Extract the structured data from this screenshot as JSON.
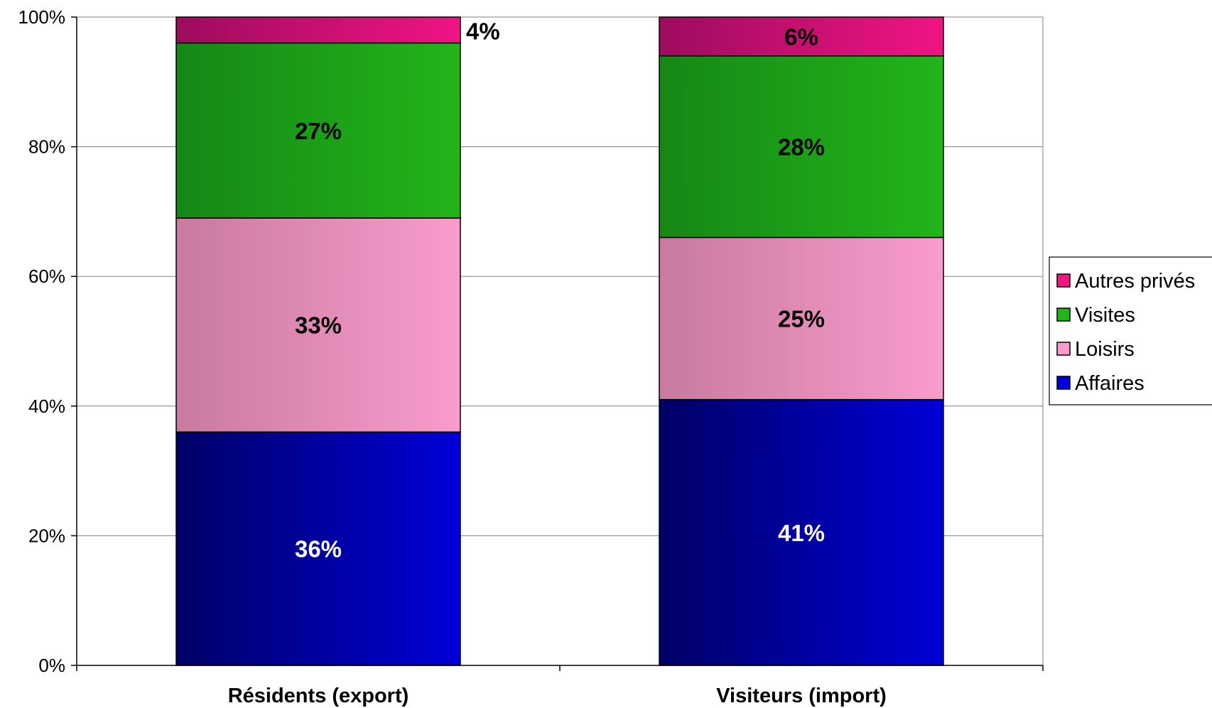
{
  "chart_data": {
    "type": "bar",
    "stacked": true,
    "categories": [
      "Résidents (export)",
      "Visiteurs (import)"
    ],
    "series": [
      {
        "name": "Affaires",
        "values": [
          36,
          41
        ],
        "labels": [
          "36%",
          "41%"
        ],
        "color": "#0000d8",
        "color_dark": "#000066",
        "label_color": "#ffffff"
      },
      {
        "name": "Loisirs",
        "values": [
          33,
          25
        ],
        "labels": [
          "33%",
          "25%"
        ],
        "color": "#f99ccc",
        "color_dark": "#c87aa0",
        "label_color": "#000000"
      },
      {
        "name": "Visites",
        "values": [
          27,
          28
        ],
        "labels": [
          "27%",
          "28%"
        ],
        "color": "#22b51a",
        "color_dark": "#168716",
        "label_color": "#000000"
      },
      {
        "name": "Autres privés",
        "values": [
          4,
          6
        ],
        "labels": [
          "4%",
          "6%"
        ],
        "color": "#f01484",
        "color_dark": "#9e0c5c",
        "label_color": "#000000"
      }
    ],
    "ylim": [
      0,
      100
    ],
    "yticks": [
      "0%",
      "20%",
      "40%",
      "60%",
      "80%",
      "100%"
    ],
    "grid": true,
    "legend": "right",
    "legend_order": [
      "Autres privés",
      "Visites",
      "Loisirs",
      "Affaires"
    ],
    "title": "",
    "xlabel": "",
    "ylabel": ""
  }
}
